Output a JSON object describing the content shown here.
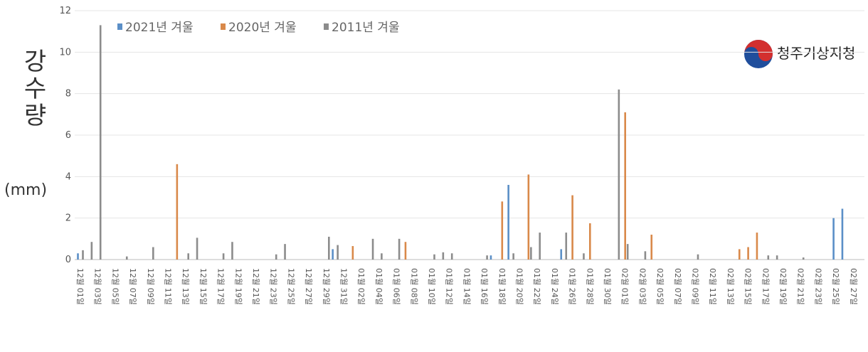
{
  "chart_data": {
    "type": "bar",
    "y_label": "강수량",
    "y_unit": "(mm)",
    "logo_text": "청주기상지청",
    "ylim": [
      0,
      12
    ],
    "yticks": [
      0,
      2,
      4,
      6,
      8,
      10,
      12
    ],
    "categories": [
      "12월 01일",
      null,
      "12월 03일",
      null,
      "12월 05일",
      null,
      "12월 07일",
      null,
      "12월 09일",
      null,
      "12월 11일",
      null,
      "12월 13일",
      null,
      "12월 15일",
      null,
      "12월 17일",
      null,
      "12월 19일",
      null,
      "12월 21일",
      null,
      "12월 23일",
      null,
      "12월 25일",
      null,
      "12월 27일",
      null,
      "12월 29일",
      null,
      "12월 31일",
      null,
      "01월 02일",
      null,
      "01월 04일",
      null,
      "01월 06일",
      null,
      "01월 08일",
      null,
      "01월 10일",
      null,
      "01월 12일",
      null,
      "01월 14일",
      null,
      "01월 16일",
      null,
      "01월 18일",
      null,
      "01월 20일",
      null,
      "01월 22일",
      null,
      "01월 24일",
      null,
      "01월 26일",
      null,
      "01월 28일",
      null,
      "01월 30일",
      null,
      "02월 01일",
      null,
      "02월 03일",
      null,
      "02월 05일",
      null,
      "02월 07일",
      null,
      "02월 09일",
      null,
      "02월 11일",
      null,
      "02월 13일",
      null,
      "02월 15일",
      null,
      "02월 17일",
      null,
      "02월 19일",
      null,
      "02월 21일",
      null,
      "02월 23일",
      null,
      "02월 25일",
      null,
      "02월 27일",
      null
    ],
    "series": [
      {
        "name": "2021년 겨울",
        "color": "#5b8fc7",
        "values": [
          0.3,
          0,
          0,
          0,
          0,
          0,
          0,
          0,
          0,
          0,
          0,
          0,
          0,
          0,
          0,
          0,
          0,
          0,
          0,
          0,
          0,
          0,
          0,
          0,
          0,
          0,
          0,
          0,
          0,
          0.5,
          0,
          0,
          0,
          0,
          0,
          0,
          0,
          0,
          0,
          0,
          0,
          0,
          0,
          0,
          0,
          0,
          0,
          0.2,
          0,
          3.6,
          0,
          0,
          0,
          0,
          0,
          0.5,
          0,
          0,
          0,
          0,
          0,
          0,
          0,
          0,
          0,
          0,
          0,
          0,
          0,
          0,
          0,
          0,
          0,
          0,
          0,
          0,
          0,
          0,
          0,
          0,
          0,
          0,
          0,
          0,
          0,
          0,
          2.0,
          2.45,
          0,
          0
        ]
      },
      {
        "name": "2020년 겨울",
        "color": "#d9894a",
        "values": [
          0,
          0,
          0,
          0,
          0,
          0,
          0,
          0,
          0,
          0,
          0,
          4.6,
          0,
          0,
          0,
          0,
          0,
          0,
          0,
          0,
          0,
          0,
          0,
          0,
          0,
          0,
          0,
          0,
          0,
          0,
          0,
          0.65,
          0,
          0,
          0,
          0,
          0,
          0.85,
          0,
          0,
          0,
          0,
          0,
          0,
          0,
          0,
          0,
          0,
          2.8,
          0,
          0,
          4.1,
          0,
          0,
          0,
          0,
          3.1,
          0,
          1.75,
          0,
          0,
          0,
          7.1,
          0,
          0,
          1.2,
          0,
          0,
          0,
          0,
          0,
          0,
          0,
          0,
          0,
          0.5,
          0.6,
          1.3,
          0,
          0,
          0,
          0,
          0,
          0,
          0,
          0,
          0,
          0,
          0,
          0
        ]
      },
      {
        "name": "2011년 겨울",
        "color": "#8c8c8c",
        "values": [
          0.45,
          0.85,
          11.3,
          0,
          0,
          0.15,
          0,
          0,
          0.6,
          0,
          0,
          0,
          0.3,
          1.05,
          0,
          0,
          0.3,
          0.85,
          0,
          0,
          0,
          0,
          0.25,
          0.75,
          0,
          0,
          0,
          0,
          1.1,
          0.7,
          0,
          0,
          0,
          1.0,
          0.3,
          0,
          1.0,
          0,
          0,
          0,
          0.25,
          0.35,
          0.3,
          0,
          0,
          0,
          0.2,
          0,
          0,
          0.3,
          0,
          0.6,
          1.3,
          0,
          0,
          1.3,
          0,
          0.3,
          0,
          0,
          0,
          8.2,
          0.75,
          0,
          0.4,
          0,
          0,
          0,
          0,
          0,
          0.25,
          0,
          0,
          0,
          0,
          0,
          0,
          0,
          0.2,
          0.2,
          0,
          0,
          0.1,
          0,
          0,
          0,
          0,
          0,
          0,
          0
        ]
      }
    ],
    "grid": true
  }
}
